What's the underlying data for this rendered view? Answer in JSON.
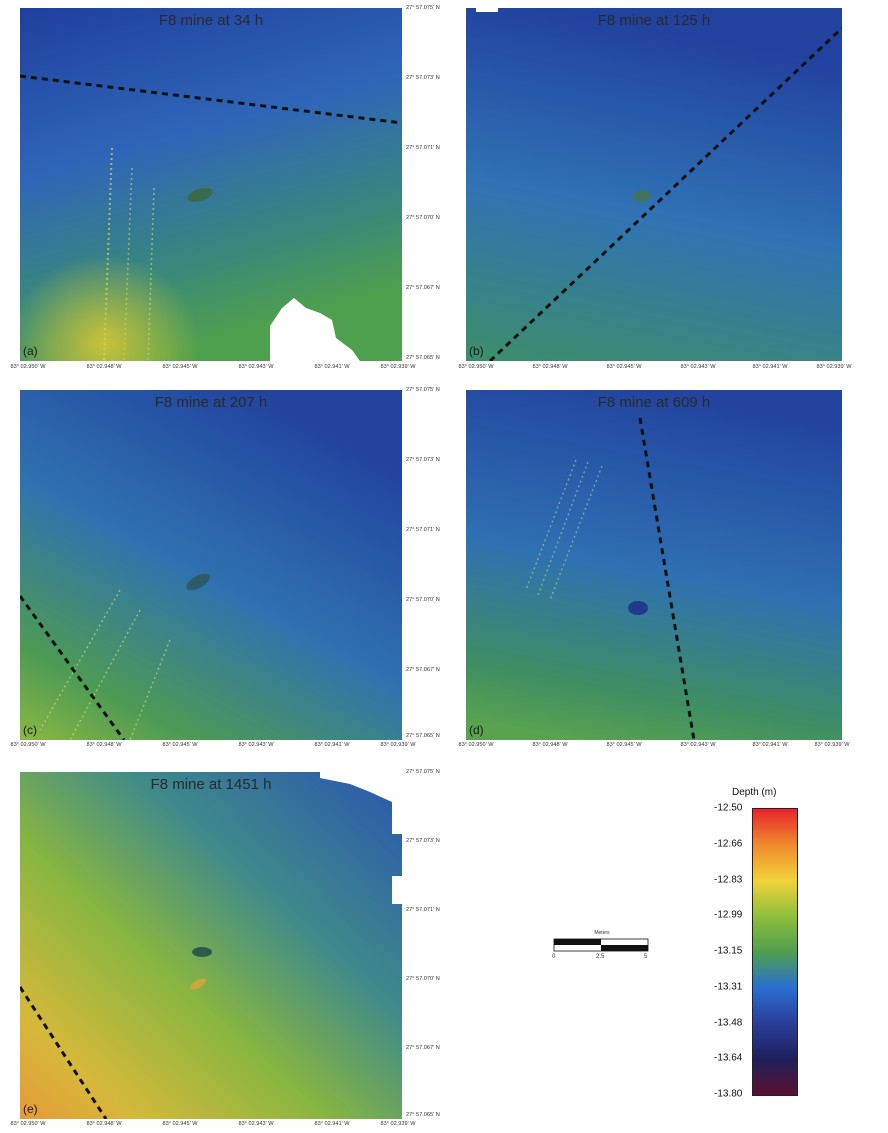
{
  "panels": [
    {
      "id": "a",
      "title": "F8 mine at 34 h",
      "label": "(a)"
    },
    {
      "id": "b",
      "title": "F8 mine at 125 h",
      "label": "(b)"
    },
    {
      "id": "c",
      "title": "F8 mine at 207 h",
      "label": "(c)"
    },
    {
      "id": "d",
      "title": "F8 mine at 609 h",
      "label": "(d)"
    },
    {
      "id": "e",
      "title": "F8 mine at 1451 h",
      "label": "(e)"
    }
  ],
  "axes": {
    "x_ticks": [
      "83° 02.950' W",
      "83° 02.948' W",
      "83° 02.945' W",
      "83° 02.943' W",
      "83° 02.941' W",
      "83° 02.939' W"
    ],
    "y_ticks": [
      "27° 57.075' N",
      "27° 57.073' N",
      "27° 57.071' N",
      "27° 57.070' N",
      "27° 57.067' N",
      "27° 57.065' N"
    ]
  },
  "legend": {
    "title": "Depth (m)",
    "values": [
      "-12.50",
      "-12.66",
      "-12.83",
      "-12.99",
      "-13.15",
      "-13.31",
      "-13.48",
      "-13.64",
      "-13.80"
    ],
    "colors": [
      "#e8232b",
      "#f08a2c",
      "#f2d33a",
      "#8fbf3a",
      "#4f9f4f",
      "#2a6fd0",
      "#2a3d9a",
      "#1e1f5a",
      "#5a1030"
    ]
  },
  "scalebar": {
    "title": "Meters",
    "ticks": [
      "0",
      "2.5",
      "5"
    ]
  }
}
